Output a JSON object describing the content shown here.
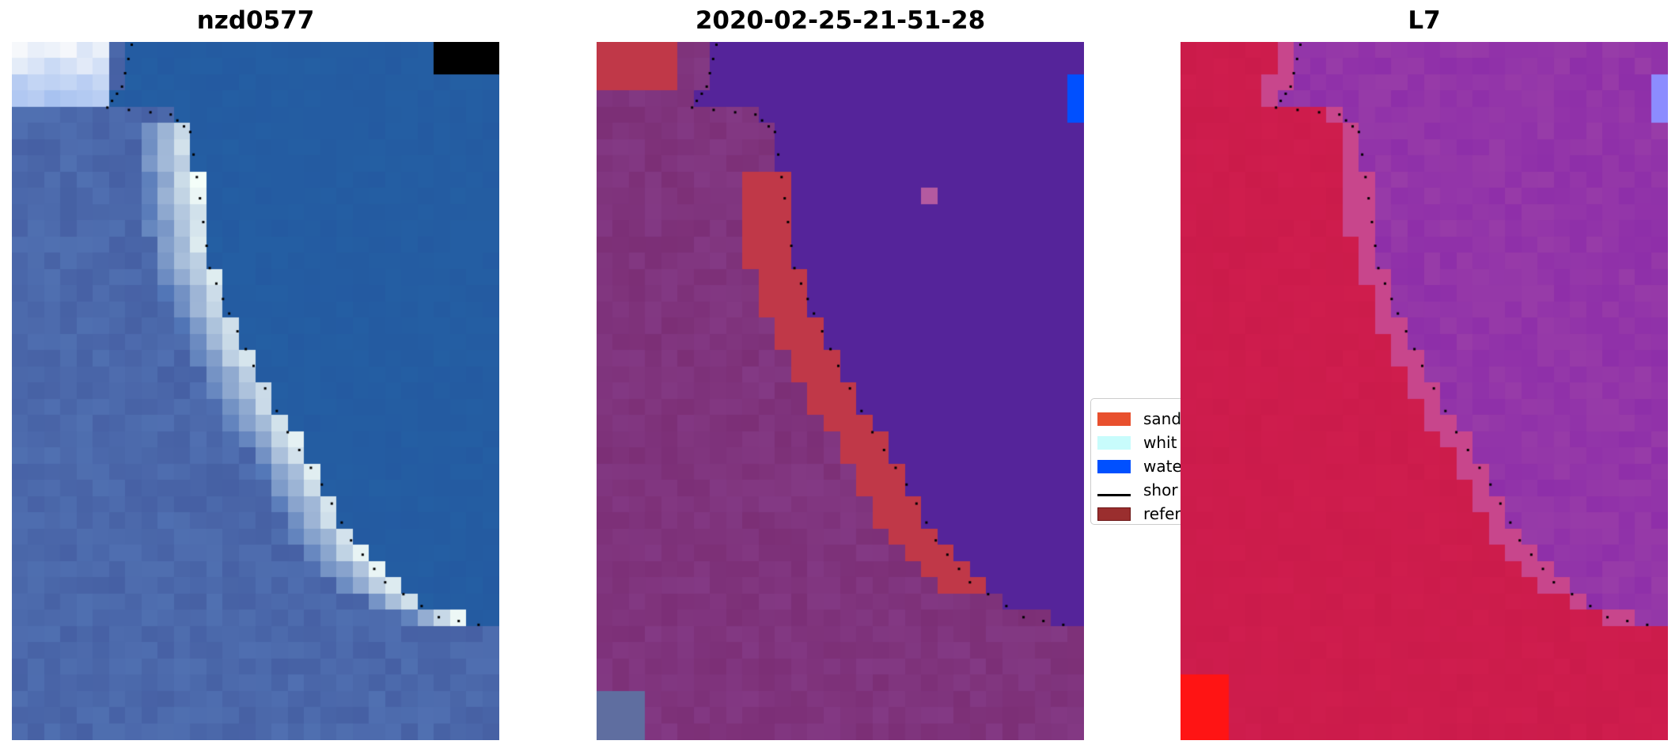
{
  "panels": [
    {
      "title": "nzd0577",
      "style": "rgb"
    },
    {
      "title": "2020-02-25-21-51-28",
      "style": "classified"
    },
    {
      "title": "L7",
      "style": "index"
    }
  ],
  "legend": {
    "placement": "between-panel-2-and-3 (partially hidden)",
    "items": [
      {
        "label": "sand",
        "color": "#e8502e",
        "kind": "patch"
      },
      {
        "label": "whit",
        "color": "#c8fcfc",
        "kind": "patch"
      },
      {
        "label": "wate",
        "color": "#0050ff",
        "kind": "patch"
      },
      {
        "label": "shor",
        "color": "#000000",
        "kind": "line"
      },
      {
        "label": "refer",
        "color": "#9a2e2e",
        "kind": "patch"
      }
    ]
  },
  "colors": {
    "water_rgb": "#2358a0",
    "land_rgb": "#5578b8",
    "sand_rgb": "#e8f4f4",
    "water_class": "#55249a",
    "land_class": "#7a2c72",
    "sand_class": "#c03848",
    "water_index": "#9a3fa8",
    "land_index": "#c81a48",
    "shoreline_dots": "#000000"
  },
  "chart_data": {
    "type": "heatmap",
    "title": "",
    "subplots": [
      "nzd0577",
      "2020-02-25-21-51-28",
      "L7"
    ],
    "grid": false,
    "axes": "off"
  }
}
